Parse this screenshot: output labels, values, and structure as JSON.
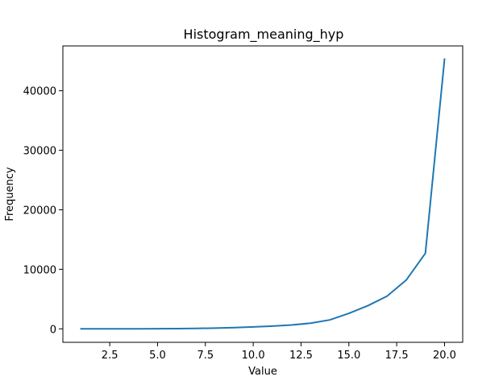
{
  "chart_data": {
    "type": "line",
    "title": "Histogram_meaning_hyp",
    "xlabel": "Value",
    "ylabel": "Frequency",
    "xlim": [
      0.05,
      20.95
    ],
    "ylim": [
      -2265,
      47530
    ],
    "xticks": [
      2.5,
      5.0,
      7.5,
      10.0,
      12.5,
      15.0,
      17.5,
      20.0
    ],
    "xtick_labels": [
      "2.5",
      "5.0",
      "7.5",
      "10.0",
      "12.5",
      "15.0",
      "17.5",
      "20.0"
    ],
    "yticks": [
      0,
      10000,
      20000,
      30000,
      40000
    ],
    "ytick_labels": [
      "0",
      "10000",
      "20000",
      "30000",
      "40000"
    ],
    "grid": false,
    "color": "#1f77b4",
    "series": [
      {
        "x": [
          1,
          2,
          3,
          4,
          5,
          6,
          7,
          8,
          9,
          10,
          11,
          12,
          13,
          14,
          15,
          16,
          17,
          18,
          19,
          20
        ],
        "values": [
          0,
          0,
          5,
          10,
          20,
          40,
          70,
          120,
          200,
          330,
          460,
          640,
          950,
          1500,
          2600,
          3900,
          5500,
          8200,
          12700,
          45300
        ]
      }
    ]
  }
}
